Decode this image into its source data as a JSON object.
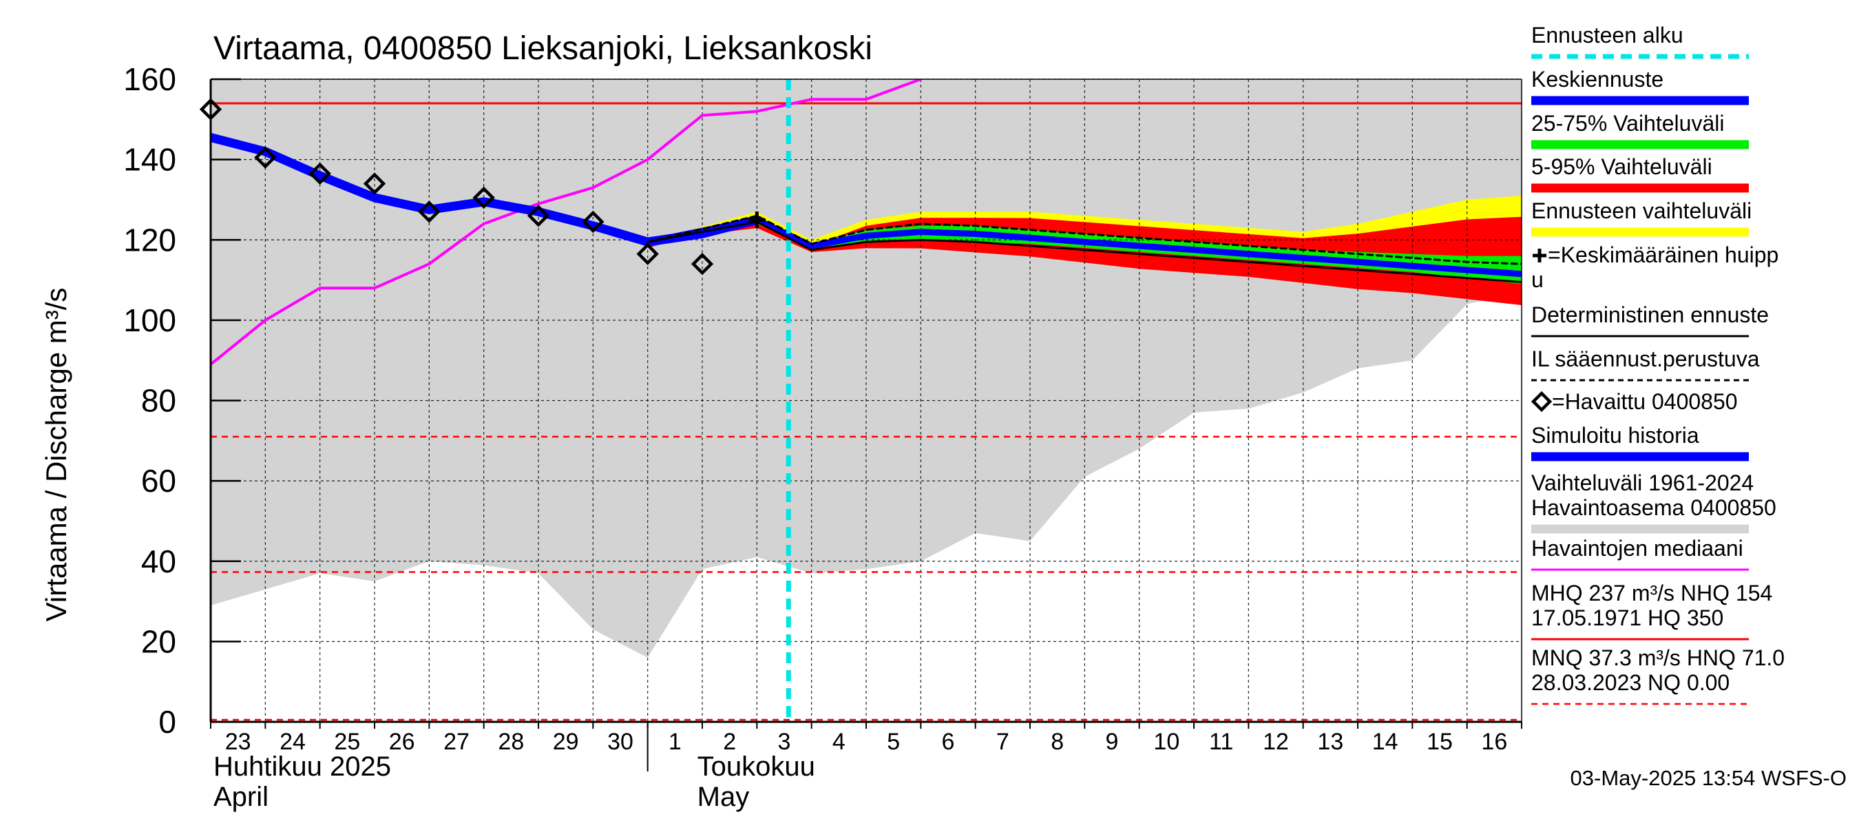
{
  "chart_data": {
    "type": "line",
    "title": "Virtaama, 0400850 Lieksanjoki, Lieksankoski",
    "ylabel": "Virtaama / Discharge    m³/s",
    "ylim": [
      0,
      160
    ],
    "yticks": [
      0,
      20,
      40,
      60,
      80,
      100,
      120,
      140,
      160
    ],
    "grid": true,
    "xlim": [
      "2025-04-23",
      "2025-05-17"
    ],
    "x_tick_labels": [
      "23",
      "24",
      "25",
      "26",
      "27",
      "28",
      "29",
      "30",
      "1",
      "2",
      "3",
      "4",
      "5",
      "6",
      "7",
      "8",
      "9",
      "10",
      "11",
      "12",
      "13",
      "14",
      "15",
      "16"
    ],
    "month_labels": [
      {
        "line1": "Huhtikuu  2025",
        "line2": "April"
      },
      {
        "line1": "Toukokuu",
        "line2": "May"
      }
    ],
    "forecast_start": "2025-05-03T13:54",
    "reference_lines": {
      "NHQ": 154,
      "HNQ": 71.0,
      "MNQ": 37.3
    },
    "history_range": [
      {
        "x": "2025-04-23",
        "low": 29,
        "high": 160
      },
      {
        "x": "2025-04-24",
        "low": 33,
        "high": 160
      },
      {
        "x": "2025-04-25",
        "low": 37,
        "high": 160
      },
      {
        "x": "2025-04-26",
        "low": 35,
        "high": 160
      },
      {
        "x": "2025-04-27",
        "low": 40,
        "high": 160
      },
      {
        "x": "2025-04-28",
        "low": 39,
        "high": 160
      },
      {
        "x": "2025-04-29",
        "low": 37,
        "high": 160
      },
      {
        "x": "2025-04-30",
        "low": 23,
        "high": 160
      },
      {
        "x": "2025-05-01",
        "low": 16,
        "high": 160
      },
      {
        "x": "2025-05-02",
        "low": 38,
        "high": 160
      },
      {
        "x": "2025-05-03",
        "low": 41,
        "high": 160
      },
      {
        "x": "2025-05-04",
        "low": 37,
        "high": 160
      },
      {
        "x": "2025-05-05",
        "low": 38,
        "high": 160
      },
      {
        "x": "2025-05-06",
        "low": 40,
        "high": 160
      },
      {
        "x": "2025-05-07",
        "low": 47,
        "high": 160
      },
      {
        "x": "2025-05-08",
        "low": 45,
        "high": 160
      },
      {
        "x": "2025-05-09",
        "low": 61,
        "high": 160
      },
      {
        "x": "2025-05-10",
        "low": 68,
        "high": 160
      },
      {
        "x": "2025-05-11",
        "low": 77,
        "high": 160
      },
      {
        "x": "2025-05-12",
        "low": 78,
        "high": 160
      },
      {
        "x": "2025-05-13",
        "low": 82,
        "high": 160
      },
      {
        "x": "2025-05-14",
        "low": 88,
        "high": 160
      },
      {
        "x": "2025-05-15",
        "low": 90,
        "high": 160
      },
      {
        "x": "2025-05-16",
        "low": 104,
        "high": 160
      },
      {
        "x": "2025-05-17",
        "low": 107,
        "high": 160
      }
    ],
    "observed_median": [
      {
        "x": "2025-04-23",
        "y": 89
      },
      {
        "x": "2025-04-24",
        "y": 100
      },
      {
        "x": "2025-04-25",
        "y": 108
      },
      {
        "x": "2025-04-26",
        "y": 108
      },
      {
        "x": "2025-04-27",
        "y": 114
      },
      {
        "x": "2025-04-28",
        "y": 124
      },
      {
        "x": "2025-04-29",
        "y": 129
      },
      {
        "x": "2025-04-30",
        "y": 133
      },
      {
        "x": "2025-05-01",
        "y": 140
      },
      {
        "x": "2025-05-02",
        "y": 151
      },
      {
        "x": "2025-05-03",
        "y": 152
      },
      {
        "x": "2025-05-04",
        "y": 155
      },
      {
        "x": "2025-05-05",
        "y": 155
      },
      {
        "x": "2025-05-06",
        "y": 160
      }
    ],
    "observed": [
      {
        "x": "2025-04-23",
        "y": 152.5
      },
      {
        "x": "2025-04-24",
        "y": 140.5
      },
      {
        "x": "2025-04-25",
        "y": 136.5
      },
      {
        "x": "2025-04-26",
        "y": 134
      },
      {
        "x": "2025-04-27",
        "y": 127
      },
      {
        "x": "2025-04-28",
        "y": 130.5
      },
      {
        "x": "2025-04-29",
        "y": 126
      },
      {
        "x": "2025-04-30",
        "y": 124.5
      },
      {
        "x": "2025-05-01",
        "y": 116.5
      },
      {
        "x": "2025-05-02",
        "y": 114
      }
    ],
    "simulated_history": [
      {
        "x": "2025-04-23",
        "y": 145.5
      },
      {
        "x": "2025-04-24",
        "y": 142
      },
      {
        "x": "2025-04-25",
        "y": 136
      },
      {
        "x": "2025-04-26",
        "y": 130.5
      },
      {
        "x": "2025-04-27",
        "y": 127.5
      },
      {
        "x": "2025-04-28",
        "y": 129.5
      },
      {
        "x": "2025-04-29",
        "y": 127
      },
      {
        "x": "2025-04-30",
        "y": 123.5
      },
      {
        "x": "2025-05-01",
        "y": 119.5
      },
      {
        "x": "2025-05-02",
        "y": 121.5
      },
      {
        "x": "2025-05-03",
        "y": 125
      }
    ],
    "forecast_range_5_95": [
      {
        "x": "2025-05-01",
        "low": 119.5,
        "high": 119.5
      },
      {
        "x": "2025-05-03",
        "low": 123,
        "high": 127
      },
      {
        "x": "2025-05-04",
        "low": 117,
        "high": 120
      },
      {
        "x": "2025-05-05",
        "low": 118,
        "high": 125
      },
      {
        "x": "2025-05-06",
        "low": 118,
        "high": 127
      },
      {
        "x": "2025-05-07",
        "low": 117,
        "high": 127
      },
      {
        "x": "2025-05-08",
        "low": 116,
        "high": 127
      },
      {
        "x": "2025-05-09",
        "low": 114.5,
        "high": 126
      },
      {
        "x": "2025-05-10",
        "low": 113,
        "high": 125
      },
      {
        "x": "2025-05-11",
        "low": 112,
        "high": 124
      },
      {
        "x": "2025-05-12",
        "low": 111,
        "high": 123
      },
      {
        "x": "2025-05-13",
        "low": 109.5,
        "high": 122
      },
      {
        "x": "2025-05-14",
        "low": 108,
        "high": 124
      },
      {
        "x": "2025-05-15",
        "low": 107,
        "high": 127
      },
      {
        "x": "2025-05-16",
        "low": 105.5,
        "high": 130
      },
      {
        "x": "2025-05-17",
        "low": 104,
        "high": 131
      }
    ],
    "forecast_range_25_75": [
      {
        "x": "2025-05-01",
        "low": 119.5,
        "high": 119.5
      },
      {
        "x": "2025-05-03",
        "low": 124,
        "high": 126
      },
      {
        "x": "2025-05-04",
        "low": 118,
        "high": 119
      },
      {
        "x": "2025-05-05",
        "low": 119.5,
        "high": 122.5
      },
      {
        "x": "2025-05-06",
        "low": 120,
        "high": 123.5
      },
      {
        "x": "2025-05-07",
        "low": 119.5,
        "high": 123.5
      },
      {
        "x": "2025-05-08",
        "low": 119,
        "high": 122.5
      },
      {
        "x": "2025-05-09",
        "low": 118,
        "high": 121.5
      },
      {
        "x": "2025-05-10",
        "low": 117,
        "high": 120.5
      },
      {
        "x": "2025-05-11",
        "low": 116,
        "high": 119.5
      },
      {
        "x": "2025-05-12",
        "low": 115,
        "high": 118.5
      },
      {
        "x": "2025-05-13",
        "low": 114,
        "high": 117.5
      },
      {
        "x": "2025-05-14",
        "low": 113,
        "high": 117
      },
      {
        "x": "2025-05-15",
        "low": 112,
        "high": 116.5
      },
      {
        "x": "2025-05-16",
        "low": 110.5,
        "high": 116
      },
      {
        "x": "2025-05-17",
        "low": 109,
        "high": 116
      }
    ],
    "mean_forecast": [
      {
        "x": "2025-05-01",
        "y": 119.5
      },
      {
        "x": "2025-05-03",
        "y": 125
      },
      {
        "x": "2025-05-04",
        "y": 118.5
      },
      {
        "x": "2025-05-05",
        "y": 121
      },
      {
        "x": "2025-05-06",
        "y": 122
      },
      {
        "x": "2025-05-07",
        "y": 121.5
      },
      {
        "x": "2025-05-08",
        "y": 120.5
      },
      {
        "x": "2025-05-09",
        "y": 119.5
      },
      {
        "x": "2025-05-10",
        "y": 118.5
      },
      {
        "x": "2025-05-11",
        "y": 117.5
      },
      {
        "x": "2025-05-12",
        "y": 116.5
      },
      {
        "x": "2025-05-13",
        "y": 115.5
      },
      {
        "x": "2025-05-14",
        "y": 114.5
      },
      {
        "x": "2025-05-15",
        "y": 113.5
      },
      {
        "x": "2025-05-16",
        "y": 112.5
      },
      {
        "x": "2025-05-17",
        "y": 111.5
      }
    ],
    "deterministic_forecast": [
      {
        "x": "2025-05-01",
        "y": 119.5
      },
      {
        "x": "2025-05-03",
        "y": 124.5
      },
      {
        "x": "2025-05-04",
        "y": 117.5
      },
      {
        "x": "2025-05-05",
        "y": 119.5
      },
      {
        "x": "2025-05-06",
        "y": 120
      },
      {
        "x": "2025-05-07",
        "y": 119.5
      },
      {
        "x": "2025-05-08",
        "y": 118.5
      },
      {
        "x": "2025-05-09",
        "y": 117.5
      },
      {
        "x": "2025-05-10",
        "y": 116.5
      },
      {
        "x": "2025-05-11",
        "y": 115.5
      },
      {
        "x": "2025-05-12",
        "y": 114.5
      },
      {
        "x": "2025-05-13",
        "y": 113.5
      },
      {
        "x": "2025-05-14",
        "y": 112.5
      },
      {
        "x": "2025-05-15",
        "y": 111.5
      },
      {
        "x": "2025-05-16",
        "y": 110.5
      },
      {
        "x": "2025-05-17",
        "y": 109.5
      }
    ],
    "il_forecast": [
      {
        "x": "2025-05-01",
        "y": 119.5
      },
      {
        "x": "2025-05-03",
        "y": 126
      },
      {
        "x": "2025-05-04",
        "y": 119
      },
      {
        "x": "2025-05-05",
        "y": 122.5
      },
      {
        "x": "2025-05-06",
        "y": 124
      },
      {
        "x": "2025-05-07",
        "y": 123.5
      },
      {
        "x": "2025-05-08",
        "y": 122.5
      },
      {
        "x": "2025-05-09",
        "y": 121.5
      },
      {
        "x": "2025-05-10",
        "y": 120.5
      },
      {
        "x": "2025-05-11",
        "y": 119.5
      },
      {
        "x": "2025-05-12",
        "y": 118.5
      },
      {
        "x": "2025-05-13",
        "y": 117.5
      },
      {
        "x": "2025-05-14",
        "y": 116.5
      },
      {
        "x": "2025-05-15",
        "y": 115.5
      },
      {
        "x": "2025-05-16",
        "y": 114.5
      },
      {
        "x": "2025-05-17",
        "y": 114
      }
    ],
    "mean_peak": {
      "x": "2025-05-03",
      "y": 125
    },
    "legend": [
      {
        "label": "Ennusteen alku",
        "swatch": "dashed",
        "color": "#00e5e5"
      },
      {
        "label": "Keskiennuste",
        "swatch": "thick",
        "color": "#0000ff"
      },
      {
        "label": "25-75% Vaihteluväli",
        "swatch": "thick",
        "color": "#00ee00"
      },
      {
        "label": "5-95% Vaihteluväli",
        "swatch": "thick",
        "color": "#ff0000"
      },
      {
        "label": "Ennusteen vaihteluväli",
        "swatch": "thick",
        "color": "#ffff00"
      },
      {
        "label": "=Keskimääräinen huipp",
        "label2": "u",
        "swatch": "plus",
        "color": "#000000"
      },
      {
        "label": "Deterministinen ennuste",
        "swatch": "line",
        "color": "#000000"
      },
      {
        "label": "IL sääennust.perustuva",
        "swatch": "dotted",
        "color": "#000000"
      },
      {
        "label": "=Havaittu 0400850",
        "swatch": "diamond",
        "color": "#000000"
      },
      {
        "label": "Simuloitu historia",
        "swatch": "thick",
        "color": "#0000ff"
      },
      {
        "label": "Vaihteluväli 1961-2024",
        "label2": " Havaintoasema 0400850",
        "swatch": "thick",
        "color": "#d3d3d3"
      },
      {
        "label": "Havaintojen mediaani",
        "swatch": "line",
        "color": "#ff00ff"
      },
      {
        "label": "MHQ  237 m³/s NHQ  154",
        "label2": "17.05.1971 HQ  350",
        "swatch": "line",
        "color": "#ff0000"
      },
      {
        "label": "MNQ 37.3 m³/s HNQ 71.0",
        "label2": "28.03.2023 NQ 0.00",
        "swatch": "dashed",
        "color": "#ff0000"
      }
    ],
    "colors": {
      "history_range": "#d3d3d3",
      "range_full": "#ffff00",
      "range_5_95": "#ff0000",
      "range_25_75": "#00ee00",
      "mean": "#0000ff",
      "simulated": "#0000ff",
      "median": "#ff00ff",
      "reference": "#ff0000",
      "forecast_start": "#00e5e5",
      "grid": "#000000"
    },
    "timestamp": "03-May-2025 13:54 WSFS-O"
  }
}
